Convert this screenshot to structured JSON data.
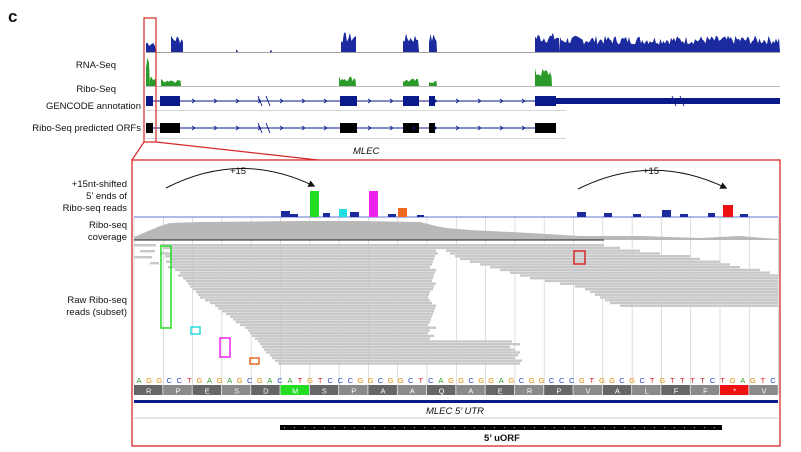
{
  "panel_letter": "c",
  "tracks": {
    "rna_seq": "RNA-Seq",
    "ribo_seq": "Ribo-Seq",
    "gencode": "GENCODE annotation",
    "orfs": "Ribo-Seq predicted ORFs"
  },
  "gene_name": "MLEC",
  "zoom": {
    "shifted_label_1": "+15nt-shifted",
    "shifted_label_2": "5’ ends of",
    "shifted_label_3": "Ribo-seq reads",
    "coverage_label_1": "Ribo-seq",
    "coverage_label_2": "coverage",
    "raw_label_1": "Raw Ribo-seq",
    "raw_label_2": "reads (subset)",
    "shift_left": "+15",
    "shift_right": "+15",
    "utr_label": "MLEC 5’ UTR",
    "uorf_label": "5’ uORF"
  },
  "sequence": [
    "A",
    "G",
    "G",
    "C",
    "C",
    "T",
    "G",
    "A",
    "G",
    "A",
    "G",
    "C",
    "G",
    "A",
    "C",
    "A",
    "T",
    "G",
    "T",
    "C",
    "C",
    "C",
    "G",
    "G",
    "C",
    "G",
    "G",
    "C",
    "T",
    "C",
    "A",
    "G",
    "G",
    "C",
    "G",
    "G",
    "A",
    "G",
    "C",
    "G",
    "G",
    "C",
    "C",
    "C",
    "G",
    "T",
    "G",
    "G",
    "C",
    "G",
    "C",
    "T",
    "G",
    "T",
    "T",
    "T",
    "T",
    "C",
    "T",
    "G",
    "A",
    "G",
    "T",
    "C"
  ],
  "amino_acids": [
    "R",
    "P",
    "E",
    "S",
    "D",
    "M",
    "S",
    "P",
    "A",
    "A",
    "Q",
    "A",
    "E",
    "R",
    "P",
    "V",
    "A",
    "L",
    "F",
    "F",
    "*",
    "V"
  ],
  "colors": {
    "rna": "#1b2a9e",
    "ribo": "#2a9a2a",
    "annotation": "#0a1a8a",
    "orf": "#000000",
    "frame": "#d62828",
    "read": "#c8c8c8",
    "nt_A": "#2e9e2e",
    "nt_C": "#2244cc",
    "nt_G": "#e08a00",
    "nt_T": "#d21f1f",
    "highlight_green": "#22dd22",
    "highlight_cyan": "#22dddd",
    "highlight_magenta": "#ee22ee",
    "highlight_orange": "#ee6a22"
  }
}
